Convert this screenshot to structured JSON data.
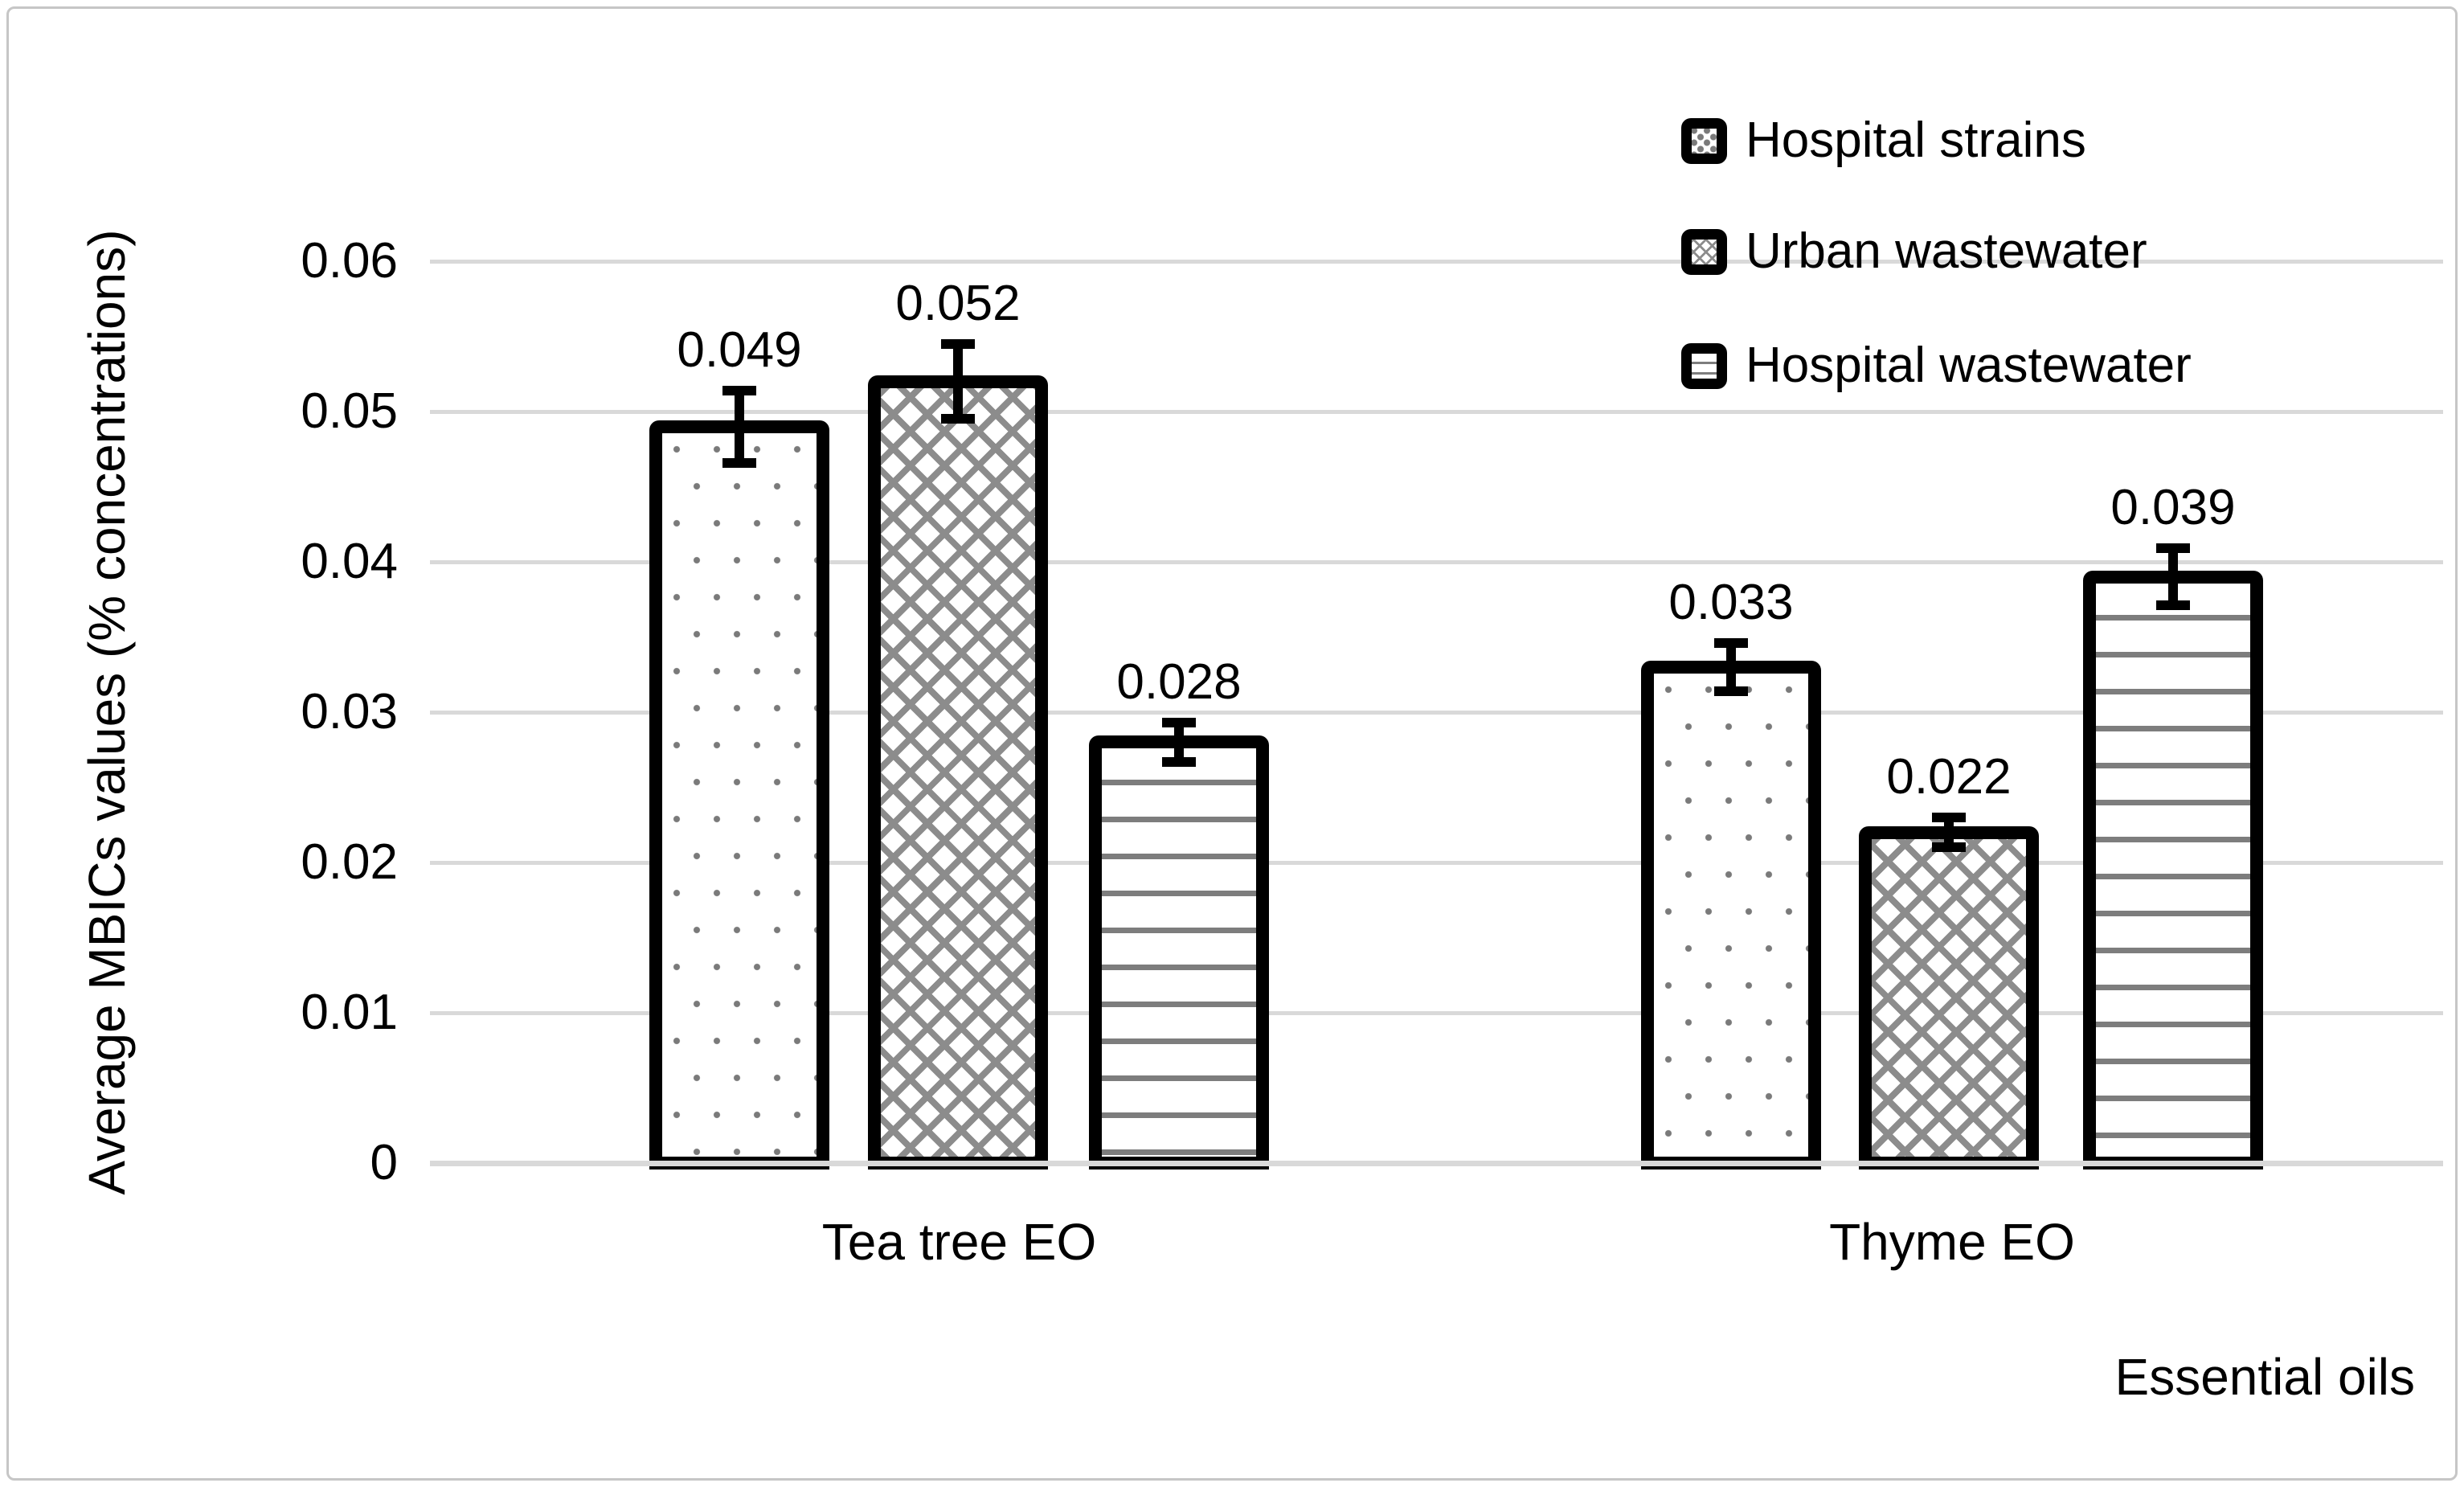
{
  "chart_data": {
    "type": "bar",
    "title": "",
    "categories": [
      "Tea tree EO",
      "Thyme EO"
    ],
    "series": [
      {
        "name": "Hospital strains",
        "pattern": "dots",
        "values": [
          0.049,
          0.033
        ],
        "errors": [
          0.0024,
          0.0016
        ]
      },
      {
        "name": "Urban wastewater",
        "pattern": "weave",
        "values": [
          0.052,
          0.022
        ],
        "errors": [
          0.0025,
          0.001
        ]
      },
      {
        "name": "Hospital wastewater",
        "pattern": "hlines",
        "values": [
          0.028,
          0.039
        ],
        "errors": [
          0.0013,
          0.0019
        ]
      }
    ],
    "data_labels": [
      [
        "0.049",
        "0.033"
      ],
      [
        "0.052",
        "0.022"
      ],
      [
        "0.028",
        "0.039"
      ]
    ],
    "ylabel": "Average MBICs values (% concentrations)",
    "xlabel": "Essential oils",
    "yticks": [
      0,
      0.01,
      0.02,
      0.03,
      0.04,
      0.05,
      0.06
    ],
    "ytick_labels": [
      "0",
      "0.01",
      "0.02",
      "0.03",
      "0.04",
      "0.05",
      "0.06"
    ],
    "ylim": [
      0,
      0.065
    ],
    "grid": true,
    "legend_position": "top-right",
    "error_bars": true,
    "colors": {
      "bar_fill": "#ffffff",
      "bar_border": "#000000",
      "pattern_gray": "#7f7f7f",
      "gridline": "#d9d9d9",
      "axis_line": "#d9d9d9",
      "text": "#000000",
      "chart_border": "#c6c6c6"
    }
  }
}
